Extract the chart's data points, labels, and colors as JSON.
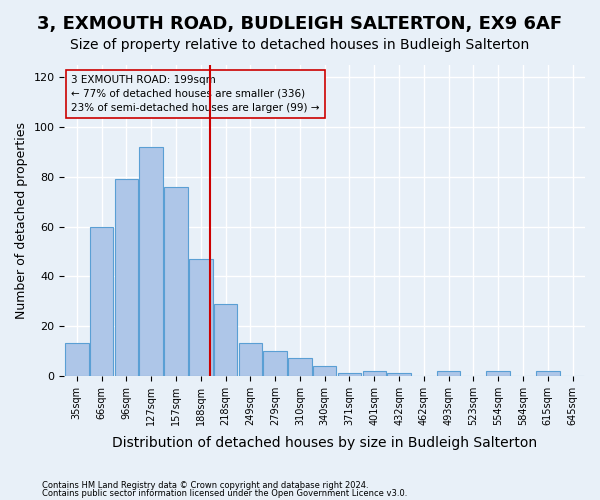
{
  "title": "3, EXMOUTH ROAD, BUDLEIGH SALTERTON, EX9 6AF",
  "subtitle": "Size of property relative to detached houses in Budleigh Salterton",
  "xlabel": "Distribution of detached houses by size in Budleigh Salterton",
  "ylabel": "Number of detached properties",
  "footnote1": "Contains HM Land Registry data © Crown copyright and database right 2024.",
  "footnote2": "Contains public sector information licensed under the Open Government Licence v3.0.",
  "categories": [
    "35sqm",
    "66sqm",
    "96sqm",
    "127sqm",
    "157sqm",
    "188sqm",
    "218sqm",
    "249sqm",
    "279sqm",
    "310sqm",
    "340sqm",
    "371sqm",
    "401sqm",
    "432sqm",
    "462sqm",
    "493sqm",
    "523sqm",
    "554sqm",
    "584sqm",
    "615sqm",
    "645sqm"
  ],
  "hist_values": [
    13,
    60,
    79,
    92,
    76,
    47,
    29,
    13,
    10,
    7,
    4,
    1,
    2,
    1,
    0,
    2,
    0,
    2,
    0,
    2,
    0
  ],
  "bar_color": "#aec6e8",
  "bar_edge_color": "#5a9fd4",
  "vline_color": "#cc0000",
  "annotation_text": "3 EXMOUTH ROAD: 199sqm\n← 77% of detached houses are smaller (336)\n23% of semi-detached houses are larger (99) →",
  "annotation_box_color": "#cc0000",
  "ylim": [
    0,
    125
  ],
  "yticks": [
    0,
    20,
    40,
    60,
    80,
    100,
    120
  ],
  "background_color": "#e8f0f8",
  "grid_color": "#ffffff",
  "title_fontsize": 13,
  "subtitle_fontsize": 10,
  "xlabel_fontsize": 10,
  "ylabel_fontsize": 9
}
